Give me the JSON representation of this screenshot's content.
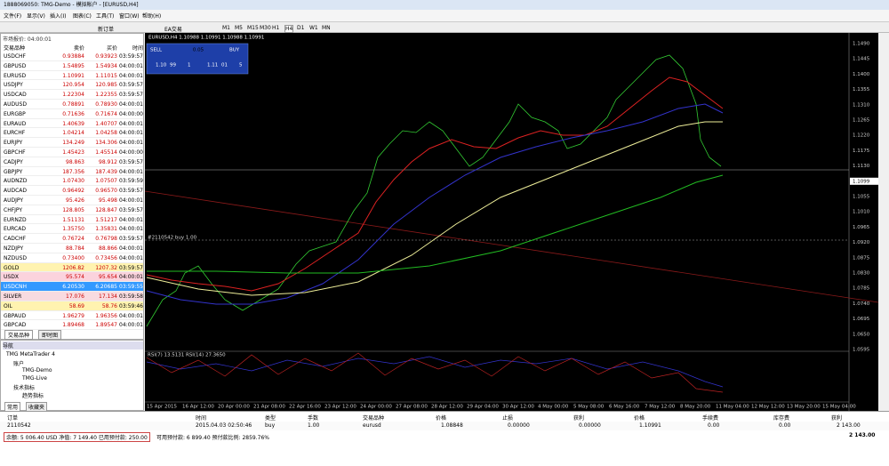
{
  "title_bar": "1888069050: TMG-Demo - 模拟帐户 - [EURUSD,H4]",
  "menu": [
    "文件(F)",
    "显示(V)",
    "插入(I)",
    "图表(C)",
    "工具(T)",
    "窗口(W)",
    "帮助(H)"
  ],
  "toolbar": {
    "new_order": "新订单",
    "expert": "EA交易",
    "timeframes": [
      "M1",
      "M5",
      "M15",
      "M30",
      "H1",
      "H4",
      "D1",
      "W1",
      "MN"
    ]
  },
  "market_watch": {
    "title": "市场报价: 04:00:01",
    "columns": [
      "交易品种",
      "卖价",
      "买价",
      "时间"
    ],
    "rows": [
      [
        "USDCHF",
        "0.93884",
        "0.93923",
        "03:59:57"
      ],
      [
        "GBPUSD",
        "1.54895",
        "1.54934",
        "04:00:01"
      ],
      [
        "EURUSD",
        "1.10991",
        "1.11015",
        "04:00:01"
      ],
      [
        "USDJPY",
        "120.954",
        "120.985",
        "03:59:57"
      ],
      [
        "USDCAD",
        "1.22304",
        "1.22355",
        "03:59:57"
      ],
      [
        "AUDUSD",
        "0.78891",
        "0.78930",
        "04:00:01"
      ],
      [
        "EURGBP",
        "0.71636",
        "0.71674",
        "04:00:00"
      ],
      [
        "EURAUD",
        "1.40639",
        "1.40707",
        "04:00:01"
      ],
      [
        "EURCHF",
        "1.04214",
        "1.04258",
        "04:00:01"
      ],
      [
        "EURJPY",
        "134.249",
        "134.306",
        "04:00:01"
      ],
      [
        "GBPCHF",
        "1.45423",
        "1.45514",
        "04:00:00"
      ],
      [
        "CADJPY",
        "98.863",
        "98.912",
        "03:59:57"
      ],
      [
        "GBPJPY",
        "187.356",
        "187.439",
        "04:00:01"
      ],
      [
        "AUDNZD",
        "1.07430",
        "1.07507",
        "03:59:59"
      ],
      [
        "AUDCAD",
        "0.96492",
        "0.96570",
        "03:59:57"
      ],
      [
        "AUDJPY",
        "95.426",
        "95.498",
        "04:00:01"
      ],
      [
        "CHFJPY",
        "128.805",
        "128.847",
        "03:59:57"
      ],
      [
        "EURNZD",
        "1.51131",
        "1.51217",
        "04:00:01"
      ],
      [
        "EURCAD",
        "1.35750",
        "1.35831",
        "04:00:01"
      ],
      [
        "CADCHF",
        "0.76724",
        "0.76798",
        "03:59:57"
      ],
      [
        "NZDJPY",
        "88.784",
        "88.866",
        "04:00:01"
      ],
      [
        "NZDUSD",
        "0.73400",
        "0.73456",
        "04:00:01"
      ],
      [
        "GOLD",
        "1206.82",
        "1207.32",
        "03:59:57"
      ],
      [
        "USDX",
        "95.574",
        "95.654",
        "04:00:01"
      ],
      [
        "USDCNH",
        "6.20530",
        "6.20685",
        "03:59:55"
      ],
      [
        "SILVER",
        "17.076",
        "17.134",
        "03:59:58"
      ],
      [
        "OIL",
        "58.69",
        "58.76",
        "03:59:46"
      ],
      [
        "GBPAUD",
        "1.96279",
        "1.96356",
        "04:00:01"
      ],
      [
        "GBPCAD",
        "1.89468",
        "1.89547",
        "04:00:01"
      ]
    ],
    "tabs": [
      "交易品种",
      "即时图"
    ]
  },
  "navigator": {
    "title": "导航",
    "items": [
      "TMG MetaTrader 4",
      "账户",
      "TMG-Demo",
      "TMG-Live",
      "技术指标",
      "趋势指标"
    ],
    "tabs": [
      "常用",
      "收藏夹"
    ]
  },
  "chart": {
    "title": "EURUSD,H4  1.10988 1.10991 1.10988 1.10991",
    "sell": "SELL",
    "buy": "BUY",
    "lot": "0.05",
    "sell_price": [
      "1.10",
      "99",
      "1"
    ],
    "buy_price": [
      "1.11",
      "01",
      "5"
    ],
    "order_line": "#2110542 buy 1.00",
    "rsi_label": "RSI(7) 13.5131  RSI(14) 27.3650",
    "price_labels": [
      "1.1490",
      "1.1445",
      "1.1400",
      "1.1355",
      "1.1310",
      "1.1265",
      "1.1220",
      "1.1175",
      "1.1130",
      "1.1099",
      "1.1055",
      "1.1010",
      "1.0965",
      "1.0920",
      "1.0875",
      "1.0830",
      "1.0785",
      "1.0740",
      "1.0695",
      "1.0650",
      "1.0595"
    ],
    "time_labels": [
      "15 Apr 2015",
      "16 Apr 12:00",
      "20 Apr 00:00",
      "21 Apr 08:00",
      "22 Apr 16:00",
      "23 Apr 12:00",
      "24 Apr 00:00",
      "27 Apr 08:00",
      "28 Apr 12:00",
      "29 Apr 04:00",
      "30 Apr 12:00",
      "4 May 00:00",
      "5 May 08:00",
      "6 May 16:00",
      "7 May 12:00",
      "8 May 20:00",
      "11 May 04:00",
      "12 May 12:00",
      "13 May 20:00",
      "15 May 04:00"
    ]
  },
  "terminal": {
    "columns": [
      "订单",
      "时间",
      "类型",
      "手数",
      "交易品种",
      "价格",
      "止损",
      "获利",
      "价格",
      "手续费",
      "库存费",
      "获利"
    ],
    "row": [
      "2110542",
      "2015.04.03 02:50:46",
      "buy",
      "1.00",
      "eurusd",
      "1.08848",
      "0.00000",
      "0.00000",
      "1.10991",
      "0.00",
      "0.00",
      "2 143.00"
    ],
    "summary": "余额: 5 006.40 USD  净值: 7 149.40  已用预付款: 250.00",
    "summary2": "可用预付款: 6 899.40  预付款比例: 2859.76%",
    "total": "2 143.00"
  }
}
